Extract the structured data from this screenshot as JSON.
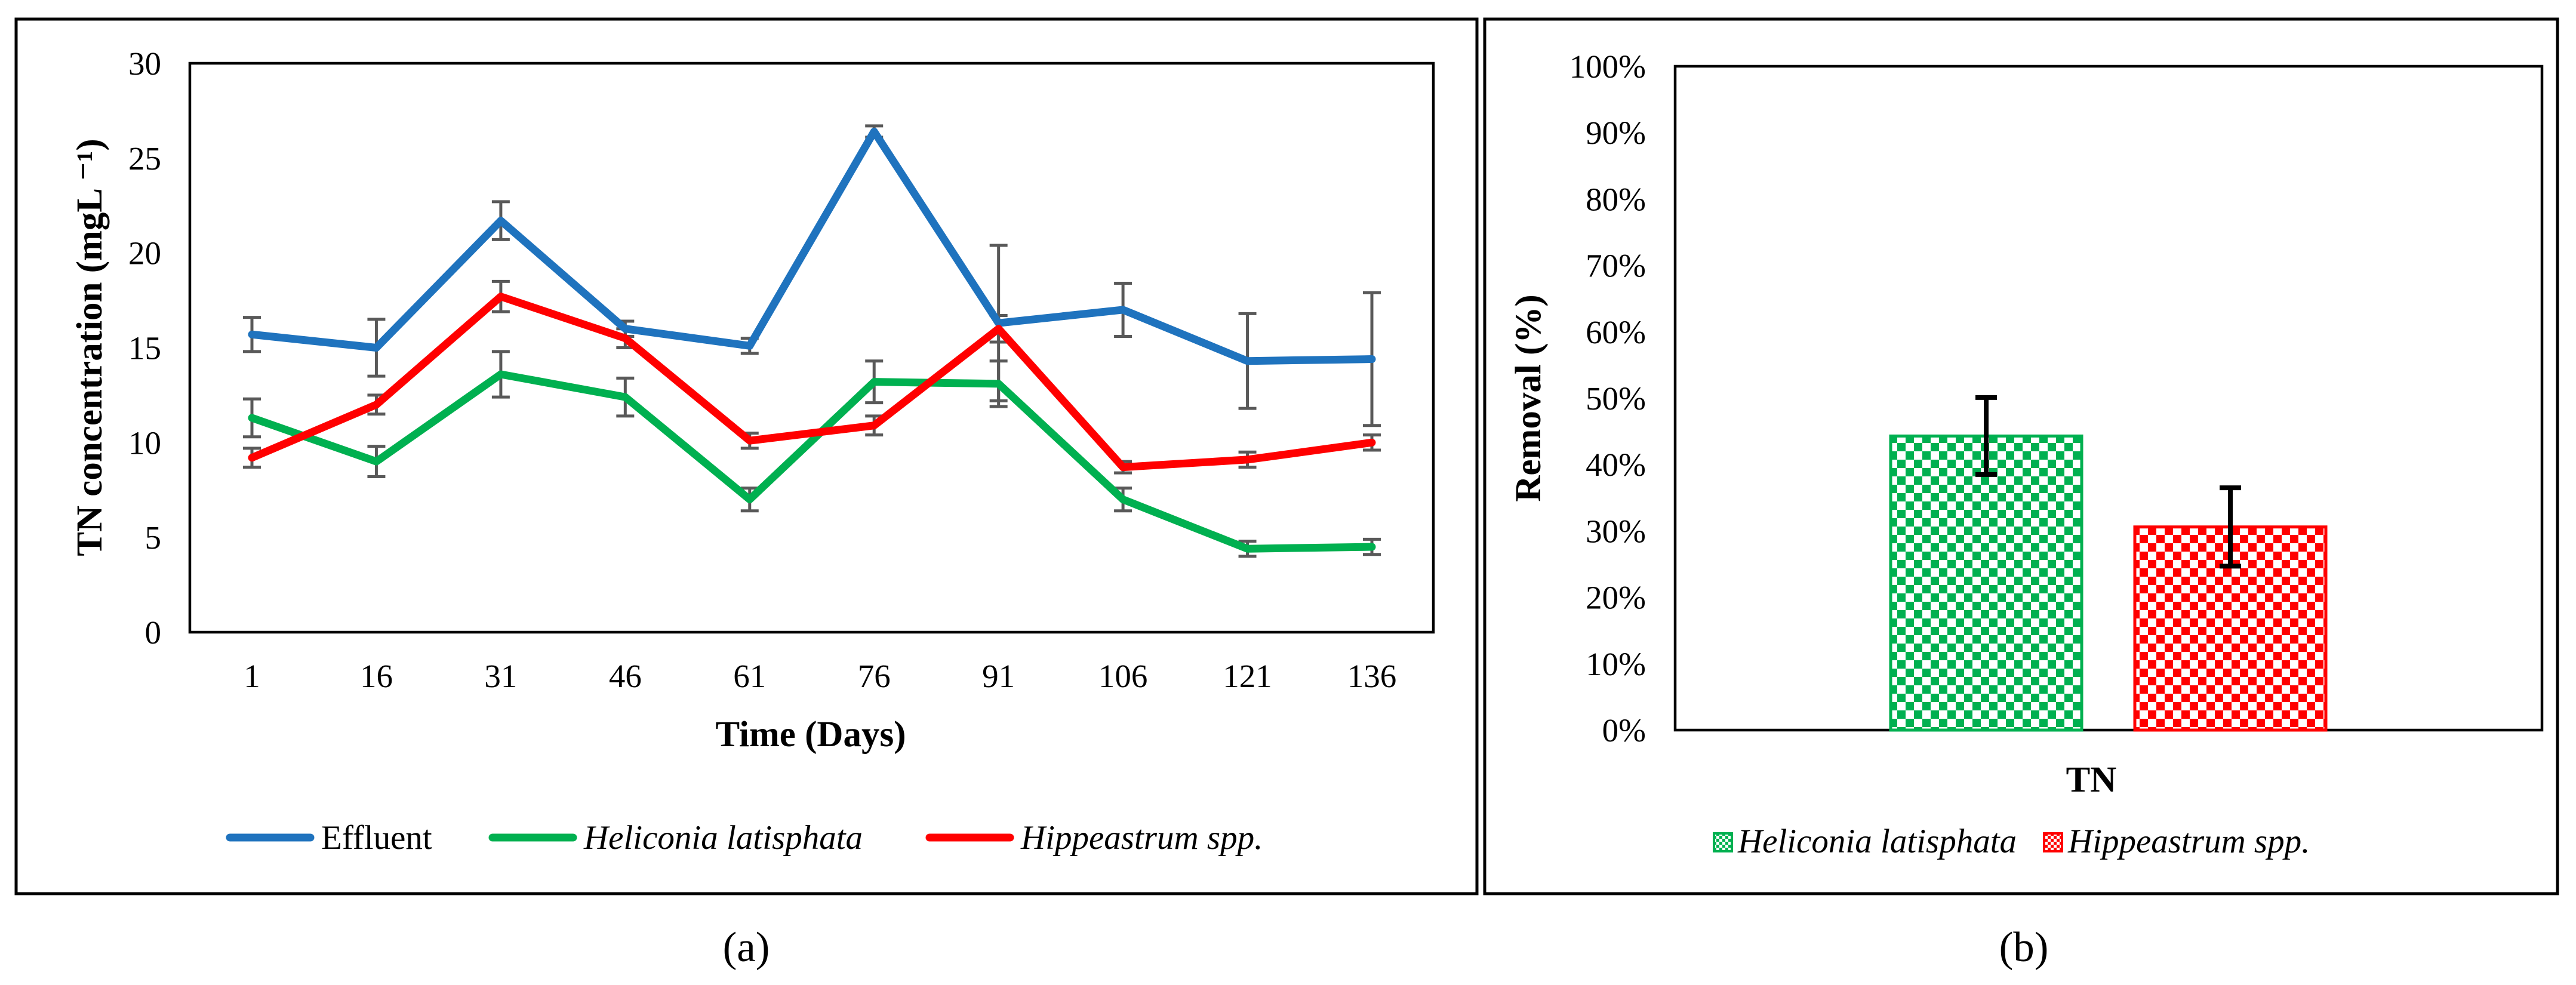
{
  "colors": {
    "effluent": "#1F73BE",
    "heliconia": "#00B050",
    "hippeastrum": "#FF0000",
    "error_bar_a": "#595959",
    "error_bar_b": "#000000"
  },
  "chart_data": [
    {
      "id": "a",
      "type": "line",
      "panel_label": "(a)",
      "title": "",
      "xlabel": "Time (Days)",
      "ylabel": "TN concentration (mgL ⁻¹)",
      "ylim": [
        0,
        30
      ],
      "yticks": [
        0,
        5,
        10,
        15,
        20,
        25,
        30
      ],
      "ytick_labels": [
        "0",
        "5",
        "10",
        "15",
        "20",
        "25",
        "30"
      ],
      "categories": [
        "1",
        "16",
        "31",
        "46",
        "61",
        "76",
        "91",
        "106",
        "121",
        "136"
      ],
      "legend_position": "bottom",
      "series": [
        {
          "name": "Effluent",
          "italic": false,
          "color": "#1F73BE",
          "values": [
            15.7,
            15.0,
            21.7,
            16.0,
            15.1,
            26.4,
            16.3,
            17.0,
            14.3,
            14.4
          ],
          "errors": [
            0.9,
            1.5,
            1.0,
            0.4,
            0.4,
            0.3,
            4.1,
            1.4,
            2.5,
            3.5
          ]
        },
        {
          "name": "Heliconia latisphata",
          "italic": true,
          "color": "#00B050",
          "values": [
            11.3,
            9.0,
            13.6,
            12.4,
            7.0,
            13.2,
            13.1,
            7.0,
            4.4,
            4.5
          ],
          "errors": [
            1.0,
            0.8,
            1.2,
            1.0,
            0.6,
            1.1,
            1.2,
            0.6,
            0.4,
            0.4
          ]
        },
        {
          "name": "Hippeastrum spp.",
          "italic": true,
          "color": "#FF0000",
          "values": [
            9.2,
            12.0,
            17.7,
            15.5,
            10.1,
            10.9,
            16.0,
            8.7,
            9.1,
            10.0
          ],
          "errors": [
            0.5,
            0.5,
            0.8,
            0.5,
            0.4,
            0.5,
            0.7,
            0.3,
            0.4,
            0.4
          ]
        }
      ]
    },
    {
      "id": "b",
      "type": "bar",
      "panel_label": "(b)",
      "title": "",
      "xlabel": "TN",
      "ylabel": "Removal (%)",
      "ylim": [
        0,
        100
      ],
      "yticks": [
        0,
        10,
        20,
        30,
        40,
        50,
        60,
        70,
        80,
        90,
        100
      ],
      "ytick_labels": [
        "0%",
        "10%",
        "20%",
        "30%",
        "40%",
        "50%",
        "60%",
        "70%",
        "80%",
        "90%",
        "100%"
      ],
      "categories": [
        "TN"
      ],
      "legend_position": "bottom",
      "series": [
        {
          "name": "Heliconia latisphata",
          "italic": true,
          "color": "#00B050",
          "values": [
            44.3
          ],
          "errors": [
            5.8
          ]
        },
        {
          "name": "Hippeastrum spp.",
          "italic": true,
          "color": "#FF0000",
          "values": [
            30.6
          ],
          "errors": [
            5.9
          ]
        }
      ]
    }
  ]
}
